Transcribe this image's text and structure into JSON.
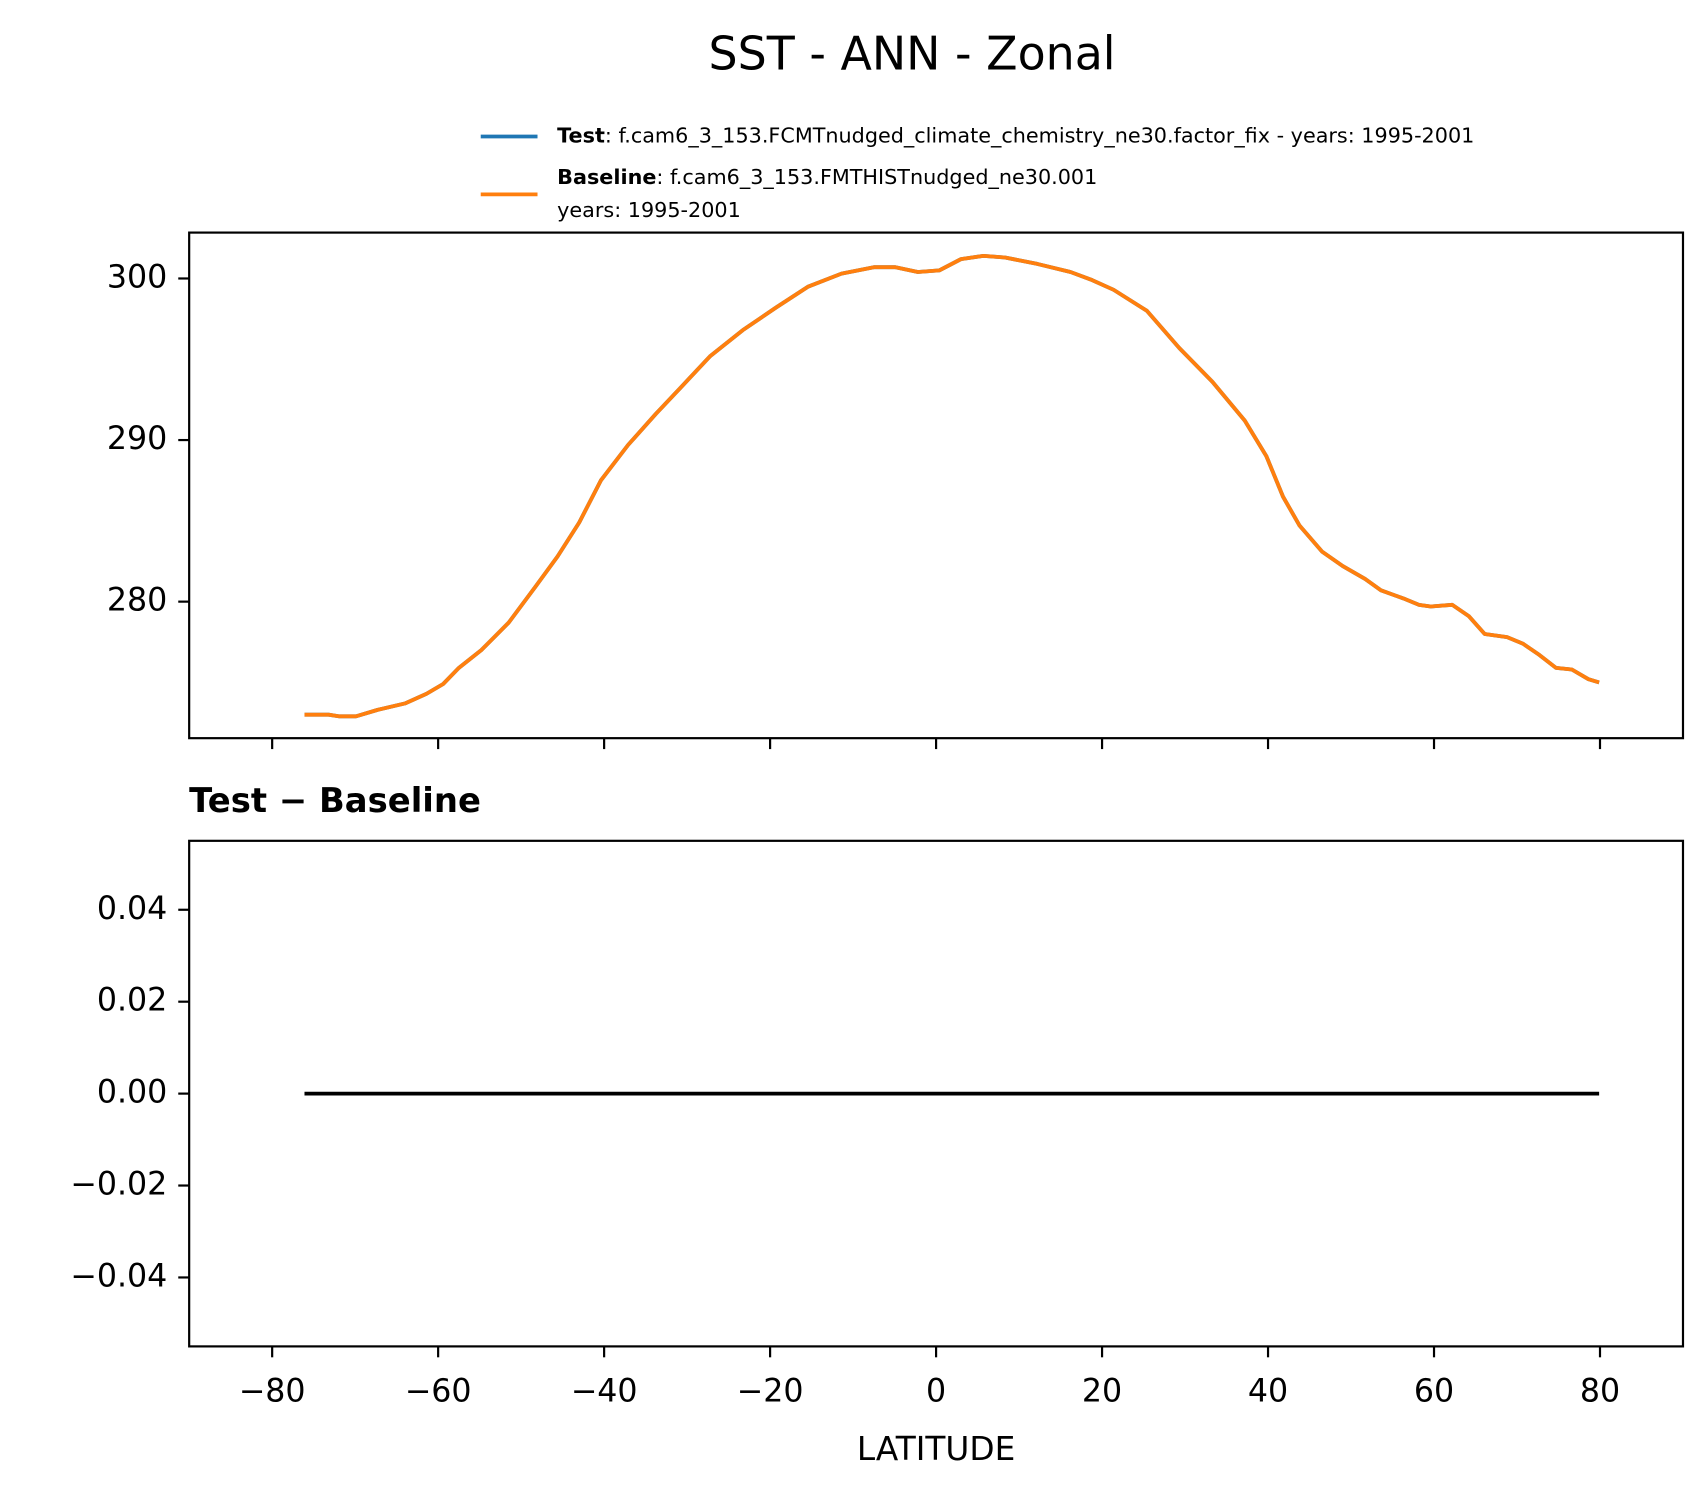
{
  "title": "SST - ANN - Zonal",
  "chart_data": [
    {
      "type": "line",
      "x": [
        -76.1,
        -73.2,
        -71.9,
        -69.9,
        -67.3,
        -64.0,
        -61.4,
        -59.4,
        -57.5,
        -54.8,
        -51.5,
        -48.3,
        -45.6,
        -43.0,
        -40.4,
        -37.1,
        -33.8,
        -30.5,
        -27.2,
        -23.3,
        -19.3,
        -15.4,
        -11.4,
        -7.5,
        -4.9,
        -2.2,
        0.4,
        3.0,
        5.7,
        8.3,
        12.2,
        16.2,
        18.8,
        21.4,
        25.4,
        29.3,
        33.3,
        37.2,
        39.8,
        41.8,
        43.8,
        46.5,
        49.0,
        51.7,
        53.6,
        56.3,
        58.2,
        59.6,
        62.2,
        64.2,
        66.1,
        68.8,
        70.7,
        72.7,
        74.7,
        76.6,
        78.6,
        79.9
      ],
      "series": [
        {
          "name": "Test",
          "description": [
            ": f.cam6_3_153.FCMTnudged_climate_chemistry_ne30.factor_fix - years: 1995-2001"
          ],
          "color": "#1f77b4",
          "values": [
            273.0,
            273.0,
            272.9,
            272.9,
            273.3,
            273.7,
            274.3,
            274.9,
            275.9,
            277.0,
            278.7,
            280.9,
            282.8,
            284.9,
            287.5,
            289.7,
            291.6,
            293.4,
            295.2,
            296.8,
            298.2,
            299.5,
            300.3,
            300.7,
            300.7,
            300.4,
            300.5,
            301.2,
            301.4,
            301.3,
            300.9,
            300.4,
            299.9,
            299.3,
            298.0,
            295.7,
            293.6,
            291.2,
            289.0,
            286.5,
            284.7,
            283.1,
            282.2,
            281.4,
            280.7,
            280.2,
            279.8,
            279.7,
            279.8,
            279.1,
            278.0,
            277.8,
            277.4,
            276.7,
            275.9,
            275.8,
            275.2,
            275.0
          ]
        },
        {
          "name": "Baseline",
          "description": [
            ": f.cam6_3_153.FMTHISTnudged_ne30.001",
            "years: 1995-2001"
          ],
          "color": "#ff7f0e",
          "values": [
            273.0,
            273.0,
            272.9,
            272.9,
            273.3,
            273.7,
            274.3,
            274.9,
            275.9,
            277.0,
            278.7,
            280.9,
            282.8,
            284.9,
            287.5,
            289.7,
            291.6,
            293.4,
            295.2,
            296.8,
            298.2,
            299.5,
            300.3,
            300.7,
            300.7,
            300.4,
            300.5,
            301.2,
            301.4,
            301.3,
            300.9,
            300.4,
            299.9,
            299.3,
            298.0,
            295.7,
            293.6,
            291.2,
            289.0,
            286.5,
            284.7,
            283.1,
            282.2,
            281.4,
            280.7,
            280.2,
            279.8,
            279.7,
            279.8,
            279.1,
            278.0,
            277.8,
            277.4,
            276.7,
            275.9,
            275.8,
            275.2,
            275.0
          ]
        }
      ],
      "xlim": [
        -90,
        90
      ],
      "xticks": [
        -80,
        -60,
        -40,
        -20,
        0,
        20,
        40,
        60,
        80
      ],
      "ylim": [
        271.55,
        302.84
      ],
      "yticks": [
        280,
        290,
        300
      ]
    },
    {
      "type": "line",
      "title": "Test − Baseline",
      "xlabel": "LATITUDE",
      "x": [
        -76.1,
        79.9
      ],
      "series": [
        {
          "color": "#000000",
          "values": [
            0,
            0
          ]
        }
      ],
      "xlim": [
        -90,
        90
      ],
      "xticks": [
        {
          "value": -80,
          "label": "−80"
        },
        {
          "value": -60,
          "label": "−60"
        },
        {
          "value": -40,
          "label": "−40"
        },
        {
          "value": -20,
          "label": "−20"
        },
        0,
        20,
        40,
        60,
        80
      ],
      "ylim": [
        -0.055,
        0.055
      ],
      "yticks": [
        {
          "value": -0.04,
          "label": "−0.04"
        },
        {
          "value": -0.02,
          "label": "−0.02"
        },
        {
          "value": 0,
          "label": "0.00"
        },
        0.02,
        0.04
      ]
    }
  ]
}
